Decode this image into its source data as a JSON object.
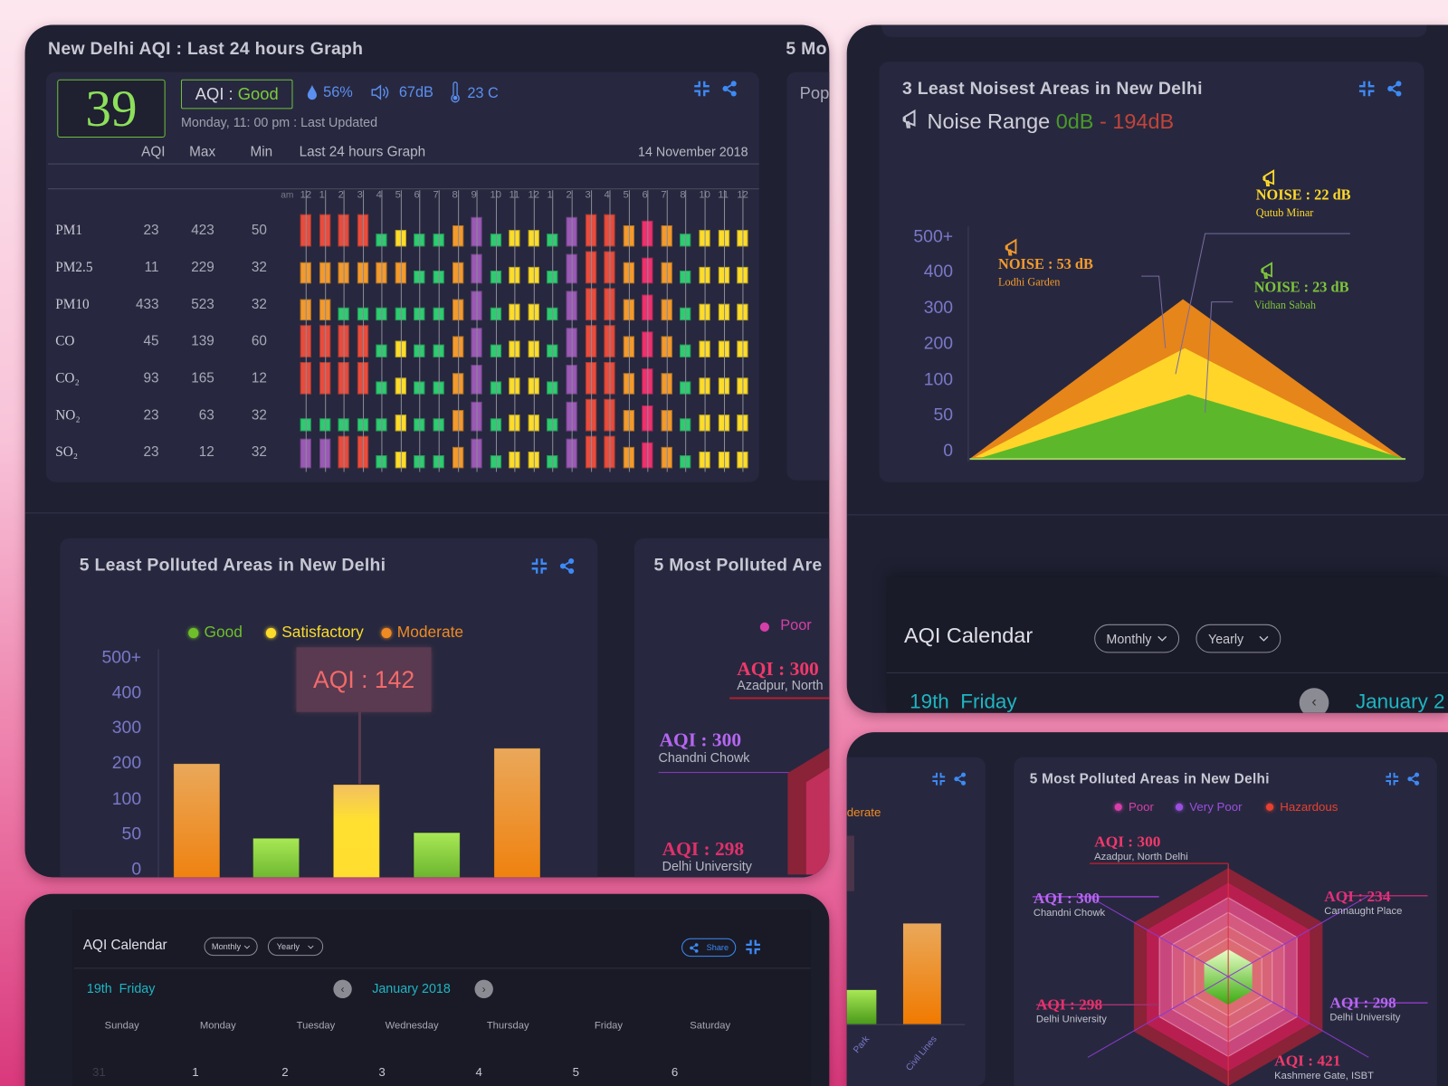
{
  "colors": {
    "accent": "#3d8af7",
    "good": "#6fcf3a",
    "satisfactory": "#fcdc2a",
    "moderate": "#f39a2d",
    "poor": "#e0307a",
    "very_poor": "#9b4fe0",
    "hazardous": "#e84c3d",
    "teal": "#1fb5c2",
    "background": "#1f2032",
    "panel": "#27283f"
  },
  "aqi_panel": {
    "title": "New Delhi AQI : Last 24 hours Graph",
    "aqi_value": "39",
    "aqi_label": "AQI : ",
    "aqi_status": "Good",
    "humidity": "56%",
    "noise": "67dB",
    "temperature": "23 C",
    "last_updated": "Monday, 11: 00 pm : Last Updated",
    "headers": {
      "aqi": "AQI",
      "max": "Max",
      "min": "Min",
      "graph": "Last 24 hours Graph",
      "date": "14 November 2018"
    },
    "hour_prefix": "am",
    "hours": [
      "12",
      "1",
      "2",
      "3",
      "4",
      "5",
      "6",
      "7",
      "8",
      "9",
      "10",
      "11",
      "12",
      "1",
      "2",
      "3",
      "4",
      "5",
      "6",
      "7",
      "8",
      "10",
      "11",
      "12"
    ],
    "category_colors": {
      "r": "#e84c3d",
      "o": "#f39a2d",
      "g": "#2ecc71",
      "y": "#fcdc2a",
      "p": "#9b59b6",
      "m": "#f0306e"
    },
    "rows": [
      {
        "name": "PM1",
        "aqi": "23",
        "max": "423",
        "min": "50",
        "levels": [
          "r",
          "r",
          "r",
          "r",
          "g",
          "y",
          "g",
          "g",
          "o",
          "p",
          "g",
          "y",
          "y",
          "g",
          "p",
          "r",
          "r",
          "o",
          "m",
          "o",
          "g",
          "y",
          "y",
          "y"
        ]
      },
      {
        "name": "PM2.5",
        "aqi": "11",
        "max": "229",
        "min": "32",
        "levels": [
          "o",
          "o",
          "o",
          "o",
          "o",
          "o",
          "g",
          "g",
          "o",
          "p",
          "g",
          "y",
          "y",
          "g",
          "p",
          "r",
          "r",
          "o",
          "m",
          "o",
          "g",
          "y",
          "y",
          "y"
        ]
      },
      {
        "name": "PM10",
        "aqi": "433",
        "max": "523",
        "min": "32",
        "levels": [
          "o",
          "o",
          "g",
          "g",
          "g",
          "g",
          "g",
          "g",
          "o",
          "p",
          "g",
          "y",
          "y",
          "g",
          "p",
          "r",
          "r",
          "o",
          "m",
          "o",
          "g",
          "y",
          "y",
          "y"
        ]
      },
      {
        "name": "CO",
        "aqi": "45",
        "max": "139",
        "min": "60",
        "levels": [
          "r",
          "r",
          "r",
          "r",
          "g",
          "y",
          "g",
          "g",
          "o",
          "p",
          "g",
          "y",
          "y",
          "g",
          "p",
          "r",
          "r",
          "o",
          "m",
          "o",
          "g",
          "y",
          "y",
          "y"
        ]
      },
      {
        "name": "CO₂",
        "aqi": "93",
        "max": "165",
        "min": "12",
        "levels": [
          "r",
          "r",
          "r",
          "r",
          "g",
          "y",
          "g",
          "g",
          "o",
          "p",
          "g",
          "y",
          "y",
          "g",
          "p",
          "r",
          "r",
          "o",
          "m",
          "o",
          "g",
          "y",
          "y",
          "y"
        ]
      },
      {
        "name": "NO₂",
        "aqi": "23",
        "max": "63",
        "min": "32",
        "levels": [
          "g",
          "g",
          "g",
          "g",
          "g",
          "y",
          "g",
          "g",
          "o",
          "p",
          "g",
          "y",
          "y",
          "g",
          "p",
          "r",
          "r",
          "o",
          "m",
          "o",
          "g",
          "y",
          "y",
          "y"
        ]
      },
      {
        "name": "SO₂",
        "aqi": "23",
        "max": "12",
        "min": "32",
        "levels": [
          "p",
          "p",
          "r",
          "r",
          "g",
          "y",
          "g",
          "g",
          "o",
          "p",
          "g",
          "y",
          "y",
          "g",
          "p",
          "r",
          "r",
          "o",
          "m",
          "o",
          "g",
          "y",
          "y",
          "y"
        ]
      }
    ]
  },
  "clipped_panel": {
    "title": "5 Mo",
    "text": "Pop"
  },
  "least_polluted": {
    "title": "5 Least Polluted Areas in New Delhi",
    "legend": [
      {
        "label": "Good",
        "color": "#6fbf2a"
      },
      {
        "label": "Satisfactory",
        "color": "#fcdc2a"
      },
      {
        "label": "Moderate",
        "color": "#f08a22"
      }
    ],
    "tooltip": "AQI : 142",
    "chart_data": {
      "type": "bar",
      "yticks": [
        "500+",
        "400",
        "300",
        "200",
        "100",
        "50",
        "0"
      ],
      "tick_values": [
        500,
        400,
        300,
        200,
        100,
        50,
        0
      ],
      "values": [
        200,
        45,
        142,
        53,
        244
      ],
      "levels": [
        "moderate",
        "good",
        "satisfactory",
        "good",
        "moderate"
      ]
    }
  },
  "most_polluted_clipped": {
    "title": "5 Most Polluted Are",
    "legend": "Poor",
    "labels": [
      {
        "aqi": "AQI : 300",
        "place": "Azadpur, North"
      },
      {
        "aqi": "AQI : 300",
        "place": "Chandni Chowk"
      },
      {
        "aqi": "AQI : 298",
        "place": "Delhi University"
      }
    ]
  },
  "noise_panel": {
    "title": "3 Least Noisest Areas in New Delhi",
    "range_label": "Noise Range ",
    "range_min": "0dB",
    "range_max": " - 194dB",
    "chart_data": {
      "type": "area",
      "yticks": [
        "500+",
        "400",
        "300",
        "200",
        "100",
        "50",
        "0"
      ],
      "series": [
        {
          "value": "NOISE : 53 dB",
          "place": "Lodhi Garden",
          "color": "#f39a2d"
        },
        {
          "value": "NOISE : 22 dB",
          "place": "Qutub Minar",
          "color": "#ffd92a"
        },
        {
          "value": "NOISE : 23 dB",
          "place": "Vidhan Sabah",
          "color": "#7dc43a"
        }
      ]
    }
  },
  "calendar_top": {
    "title": "AQI Calendar",
    "monthly": "Monthly",
    "yearly": "Yearly",
    "selected_day": "19th  Friday",
    "month": "January 2"
  },
  "calendar_bottom": {
    "title": "AQI Calendar",
    "monthly": "Monthly",
    "yearly": "Yearly",
    "share": "Share",
    "selected_day": "19th  Friday",
    "month": "January 2018",
    "weekdays": [
      "Sunday",
      "Monday",
      "Tuesday",
      "Wednesday",
      "Thursday",
      "Friday",
      "Saturday"
    ],
    "dates": [
      "31",
      "1",
      "2",
      "3",
      "4",
      "5",
      "6"
    ]
  },
  "bar_clipped": {
    "legend": "derate",
    "x_labels": [
      "Park",
      "Civil Lines"
    ]
  },
  "most_polluted": {
    "title": "5 Most Polluted Areas in New Delhi",
    "legend": [
      {
        "label": "Poor",
        "color": "#d63fa8"
      },
      {
        "label": "Very Poor",
        "color": "#9b4fe0"
      },
      {
        "label": "Hazardous",
        "color": "#e8402f"
      }
    ],
    "labels": [
      {
        "aqi": "AQI : 300",
        "place": "Azadpur, North Delhi",
        "color": "#f0386a"
      },
      {
        "aqi": "AQI : 300",
        "place": "Chandni Chowk",
        "color": "#b666f0"
      },
      {
        "aqi": "AQI : 234",
        "place": "Cannaught Place",
        "color": "#e0307a"
      },
      {
        "aqi": "AQI : 298",
        "place": "Delhi University",
        "color": "#e8306a"
      },
      {
        "aqi": "AQI : 298",
        "place": "Delhi University",
        "color": "#b666f0"
      },
      {
        "aqi": "AQI : 421",
        "place": "Kashmere Gate, ISBT",
        "color": "#f0386a"
      }
    ]
  }
}
